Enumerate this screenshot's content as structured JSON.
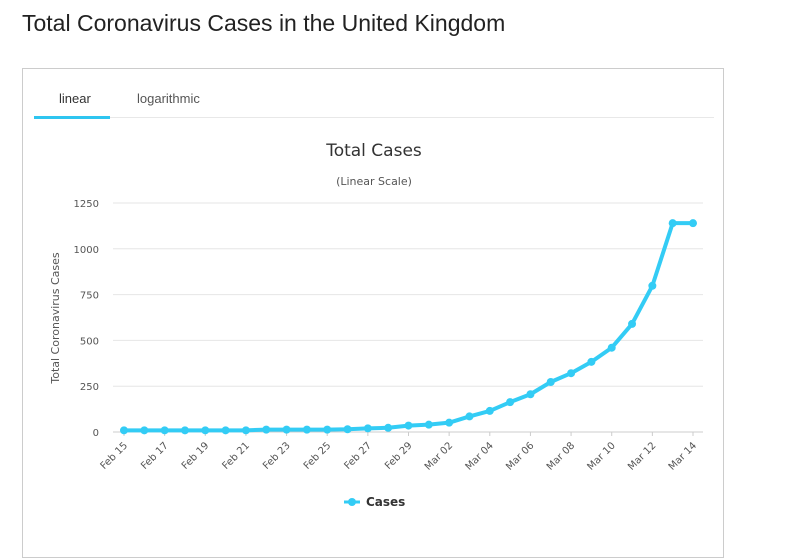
{
  "page": {
    "title": "Total Coronavirus Cases in the United Kingdom"
  },
  "tabs": [
    {
      "label": "linear",
      "active": true
    },
    {
      "label": "logarithmic",
      "active": false
    }
  ],
  "colors": {
    "series": "#33ccf5",
    "tab_accent": "#2ec5f0",
    "grid": "#e6e6e6"
  },
  "chart_data": {
    "type": "line",
    "title": "Total Cases",
    "subtitle": "(Linear Scale)",
    "ylabel": "Total Coronavirus Cases",
    "xlabel": "",
    "ylim": [
      0,
      1250
    ],
    "yticks": [
      0,
      250,
      500,
      750,
      1000,
      1250
    ],
    "grid": true,
    "legend_position": "bottom",
    "x": [
      "Feb 15",
      "Feb 16",
      "Feb 17",
      "Feb 18",
      "Feb 19",
      "Feb 20",
      "Feb 21",
      "Feb 22",
      "Feb 23",
      "Feb 24",
      "Feb 25",
      "Feb 26",
      "Feb 27",
      "Feb 28",
      "Feb 29",
      "Mar 01",
      "Mar 02",
      "Mar 03",
      "Mar 04",
      "Mar 05",
      "Mar 06",
      "Mar 07",
      "Mar 08",
      "Mar 09",
      "Mar 10",
      "Mar 11",
      "Mar 12",
      "Mar 13",
      "Mar 14"
    ],
    "x_tick_labels": [
      "Feb 15",
      "Feb 17",
      "Feb 19",
      "Feb 21",
      "Feb 23",
      "Feb 25",
      "Feb 27",
      "Feb 29",
      "Mar 02",
      "Mar 04",
      "Mar 06",
      "Mar 08",
      "Mar 10",
      "Mar 12",
      "Mar 14"
    ],
    "series": [
      {
        "name": "Cases",
        "values": [
          9,
          9,
          9,
          9,
          9,
          9,
          9,
          13,
          13,
          13,
          13,
          15,
          20,
          23,
          35,
          40,
          51,
          85,
          115,
          163,
          206,
          273,
          321,
          383,
          460,
          590,
          798,
          1140,
          1140
        ]
      }
    ]
  }
}
